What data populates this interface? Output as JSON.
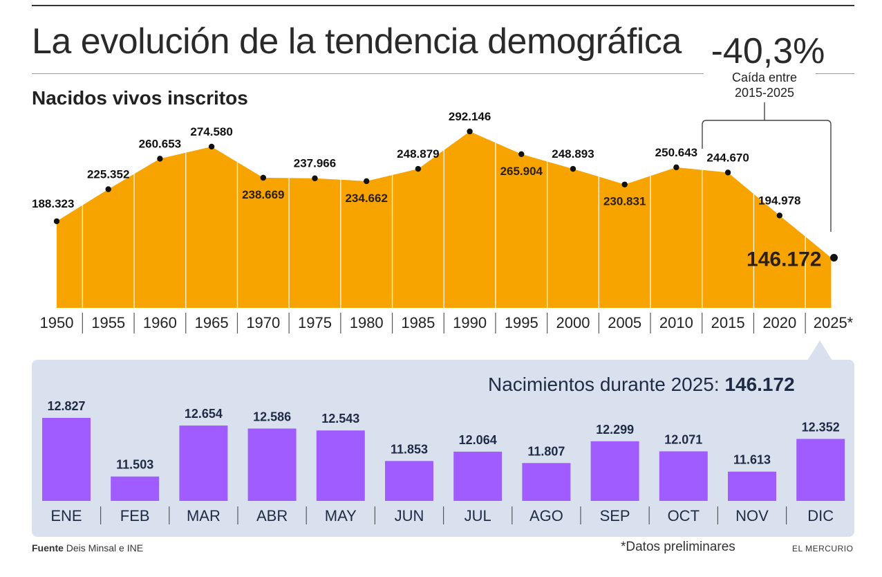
{
  "header": {
    "title": "La evolución de la tendencia demográfica",
    "subtitle": "Nacidos vivos inscritos",
    "headline_value": "-40,3%",
    "headline_note": "Caída entre 2015-2025"
  },
  "chart_data": [
    {
      "type": "area",
      "title": "Nacidos vivos inscritos",
      "categories": [
        "1950",
        "1955",
        "1960",
        "1965",
        "1970",
        "1975",
        "1980",
        "1985",
        "1990",
        "1995",
        "2000",
        "2005",
        "2010",
        "2015",
        "2020",
        "2025*"
      ],
      "values": [
        188323,
        225352,
        260653,
        274580,
        238669,
        237966,
        234662,
        248879,
        292146,
        265904,
        248893,
        230831,
        250643,
        244670,
        194978,
        146172
      ],
      "labels": [
        "188.323",
        "225.352",
        "260.653",
        "274.580",
        "238.669",
        "237.966",
        "234.662",
        "248.879",
        "292.146",
        "265.904",
        "248.893",
        "230.831",
        "250.643",
        "244.670",
        "194.978",
        "146.172"
      ],
      "color": "#f7a400"
    },
    {
      "type": "bar",
      "title": "Nacimientos durante 2025:",
      "title_value": "146.172",
      "categories": [
        "ENE",
        "FEB",
        "MAR",
        "ABR",
        "MAY",
        "JUN",
        "JUL",
        "AGO",
        "SEP",
        "OCT",
        "NOV",
        "DIC"
      ],
      "values": [
        12827,
        11503,
        12654,
        12586,
        12543,
        11853,
        12064,
        11807,
        12299,
        12071,
        11613,
        12352
      ],
      "labels": [
        "12.827",
        "11.503",
        "12.654",
        "12.586",
        "12.543",
        "11.853",
        "12.064",
        "11.807",
        "12.299",
        "12.071",
        "11.613",
        "12.352"
      ],
      "color": "#a05cff"
    }
  ],
  "footer": {
    "source_label": "Fuente",
    "source_text": "Deis Minsal e INE",
    "footnote": "*Datos preliminares",
    "brand": "EL MERCURIO"
  }
}
